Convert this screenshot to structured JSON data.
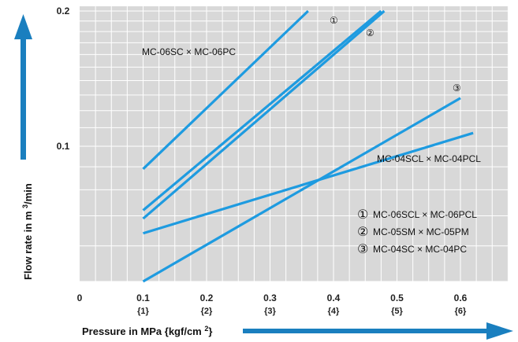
{
  "chart_data": {
    "type": "line",
    "xlabel": "Pressure in MPa {kgf/cm2}",
    "ylabel": "Flow rate in m3/min",
    "x_ticks": [
      {
        "value": 0,
        "label": "0",
        "sub": ""
      },
      {
        "value": 0.1,
        "label": "0.1",
        "sub": "{1}"
      },
      {
        "value": 0.2,
        "label": "0.2",
        "sub": "{2}"
      },
      {
        "value": 0.3,
        "label": "0.3",
        "sub": "{3}"
      },
      {
        "value": 0.4,
        "label": "0.4",
        "sub": "{4}"
      },
      {
        "value": 0.5,
        "label": "0.5",
        "sub": "{5}"
      },
      {
        "value": 0.6,
        "label": "0.6",
        "sub": "{6}"
      }
    ],
    "y_ticks": [
      {
        "value": 0.1,
        "label": "0.1"
      },
      {
        "value": 0.2,
        "label": "0.2"
      }
    ],
    "xlim": [
      0,
      0.7
    ],
    "ylim": [
      0.01,
      0.2
    ],
    "y_scale": "log",
    "grid": true,
    "line_color": "#1e9be0",
    "plot_bg": "#d8d8d8",
    "arrow_color": "#1a7fbf",
    "series": [
      {
        "name": "MC-06SC × MC-06PC",
        "x": [
          0.1,
          0.36
        ],
        "y": [
          0.089,
          0.2
        ]
      },
      {
        "name": "MC-06SCL × MC-06PCL",
        "x": [
          0.1,
          0.475
        ],
        "y": [
          0.072,
          0.2
        ]
      },
      {
        "name": "MC-05SM × MC-05PM",
        "x": [
          0.1,
          0.48
        ],
        "y": [
          0.069,
          0.2
        ]
      },
      {
        "name": "MC-04SC × MC-04PC",
        "x": [
          0.1,
          0.6
        ],
        "y": [
          0.05,
          0.128
        ]
      },
      {
        "name": "MC-04SCL × MC-04PCL",
        "x": [
          0.1,
          0.62
        ],
        "y": [
          0.064,
          0.107
        ]
      }
    ],
    "annotations": [
      {
        "text": "MC-06SC × MC-06PC"
      },
      {
        "text": "①"
      },
      {
        "text": "②"
      },
      {
        "text": "③"
      },
      {
        "text": "MC-04SCL × MC-04PCL"
      }
    ],
    "legend": [
      {
        "marker": "①",
        "text": "MC-06SCL × MC-06PCL"
      },
      {
        "marker": "②",
        "text": "MC-05SM × MC-05PM"
      },
      {
        "marker": "③",
        "text": "MC-04SC × MC-04PC"
      }
    ]
  }
}
